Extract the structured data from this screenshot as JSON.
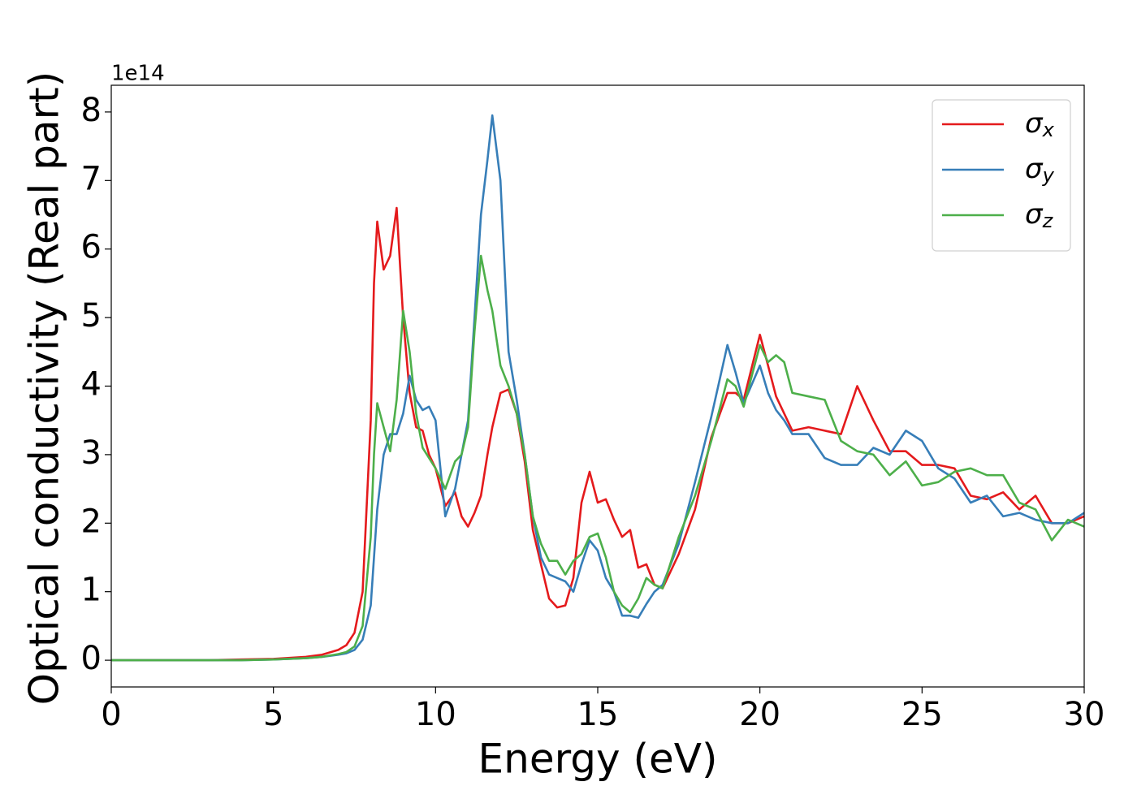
{
  "chart_data": {
    "type": "line",
    "xlabel": "Energy (eV)",
    "ylabel": "Optical conductivity (Real part)",
    "offset_label": "1e14",
    "x": [
      0,
      1,
      2,
      3,
      4,
      5,
      6,
      6.5,
      7,
      7.25,
      7.5,
      7.75,
      8,
      8.1,
      8.2,
      8.4,
      8.6,
      8.8,
      9,
      9.2,
      9.4,
      9.6,
      9.8,
      10,
      10.3,
      10.6,
      10.8,
      11,
      11.2,
      11.4,
      11.6,
      11.75,
      12,
      12.25,
      12.5,
      12.75,
      13,
      13.25,
      13.5,
      13.75,
      14,
      14.25,
      14.5,
      14.75,
      15,
      15.25,
      15.5,
      15.75,
      16,
      16.25,
      16.5,
      16.75,
      17,
      17.5,
      18,
      18.5,
      19,
      19.25,
      19.5,
      20,
      20.25,
      20.5,
      20.75,
      21,
      21.5,
      22,
      22.5,
      23,
      23.5,
      24,
      24.5,
      25,
      25.5,
      26,
      26.5,
      27,
      27.5,
      28,
      28.5,
      29,
      29.5,
      30
    ],
    "series": [
      {
        "name": "σx",
        "color": "#e41a1c",
        "values": [
          0,
          0,
          0,
          0,
          0.01,
          0.02,
          0.05,
          0.08,
          0.15,
          0.22,
          0.4,
          1.0,
          3.5,
          5.5,
          6.4,
          5.7,
          5.9,
          6.6,
          5.0,
          3.9,
          3.4,
          3.35,
          3.0,
          2.8,
          2.25,
          2.45,
          2.1,
          1.95,
          2.15,
          2.4,
          3.0,
          3.4,
          3.9,
          3.95,
          3.6,
          2.9,
          1.9,
          1.4,
          0.9,
          0.77,
          0.8,
          1.2,
          2.3,
          2.75,
          2.3,
          2.35,
          2.05,
          1.8,
          1.9,
          1.35,
          1.4,
          1.1,
          1.05,
          1.55,
          2.2,
          3.25,
          3.9,
          3.9,
          3.8,
          4.75,
          4.3,
          3.85,
          3.6,
          3.35,
          3.4,
          3.35,
          3.3,
          4.0,
          3.5,
          3.05,
          3.05,
          2.85,
          2.85,
          2.8,
          2.4,
          2.35,
          2.45,
          2.2,
          2.4,
          2.0,
          2.0,
          2.1
        ]
      },
      {
        "name": "σy",
        "color": "#377eb8",
        "values": [
          0,
          0,
          0,
          0,
          0,
          0.01,
          0.03,
          0.05,
          0.08,
          0.1,
          0.15,
          0.3,
          0.8,
          1.5,
          2.2,
          3.0,
          3.3,
          3.3,
          3.6,
          4.15,
          3.8,
          3.65,
          3.7,
          3.5,
          2.1,
          2.5,
          3.0,
          3.5,
          5.0,
          6.5,
          7.3,
          7.95,
          7.0,
          4.5,
          3.8,
          3.0,
          2.1,
          1.5,
          1.25,
          1.2,
          1.15,
          1.0,
          1.4,
          1.75,
          1.6,
          1.2,
          1.0,
          0.65,
          0.65,
          0.62,
          0.82,
          1.0,
          1.1,
          1.7,
          2.6,
          3.55,
          4.6,
          4.2,
          3.75,
          4.3,
          3.9,
          3.65,
          3.5,
          3.3,
          3.3,
          2.95,
          2.85,
          2.85,
          3.1,
          3.0,
          3.35,
          3.2,
          2.8,
          2.65,
          2.3,
          2.4,
          2.1,
          2.15,
          2.05,
          2.0,
          2.0,
          2.15
        ]
      },
      {
        "name": "σz",
        "color": "#4daf4a",
        "values": [
          0,
          0,
          0,
          0,
          0,
          0.01,
          0.03,
          0.05,
          0.09,
          0.12,
          0.2,
          0.5,
          1.8,
          3.0,
          3.75,
          3.4,
          3.05,
          3.8,
          5.1,
          4.5,
          3.6,
          3.1,
          2.95,
          2.8,
          2.5,
          2.9,
          3.0,
          3.4,
          4.8,
          5.9,
          5.4,
          5.1,
          4.3,
          4.0,
          3.6,
          3.0,
          2.1,
          1.7,
          1.45,
          1.45,
          1.25,
          1.45,
          1.55,
          1.8,
          1.85,
          1.5,
          1.0,
          0.8,
          0.7,
          0.9,
          1.2,
          1.1,
          1.05,
          1.8,
          2.4,
          3.2,
          4.1,
          4.0,
          3.7,
          4.6,
          4.35,
          4.45,
          4.35,
          3.9,
          3.85,
          3.8,
          3.2,
          3.05,
          3.0,
          2.7,
          2.9,
          2.55,
          2.6,
          2.75,
          2.8,
          2.7,
          2.7,
          2.3,
          2.2,
          1.75,
          2.05,
          1.95
        ]
      }
    ],
    "xlim": [
      0,
      30
    ],
    "xticks": [
      0,
      5,
      10,
      15,
      20,
      25,
      30
    ],
    "ylim": [
      -0.39,
      8.39
    ],
    "yticks": [
      0,
      1,
      2,
      3,
      4,
      5,
      6,
      7,
      8
    ],
    "grid": false,
    "legend": "upper right"
  }
}
